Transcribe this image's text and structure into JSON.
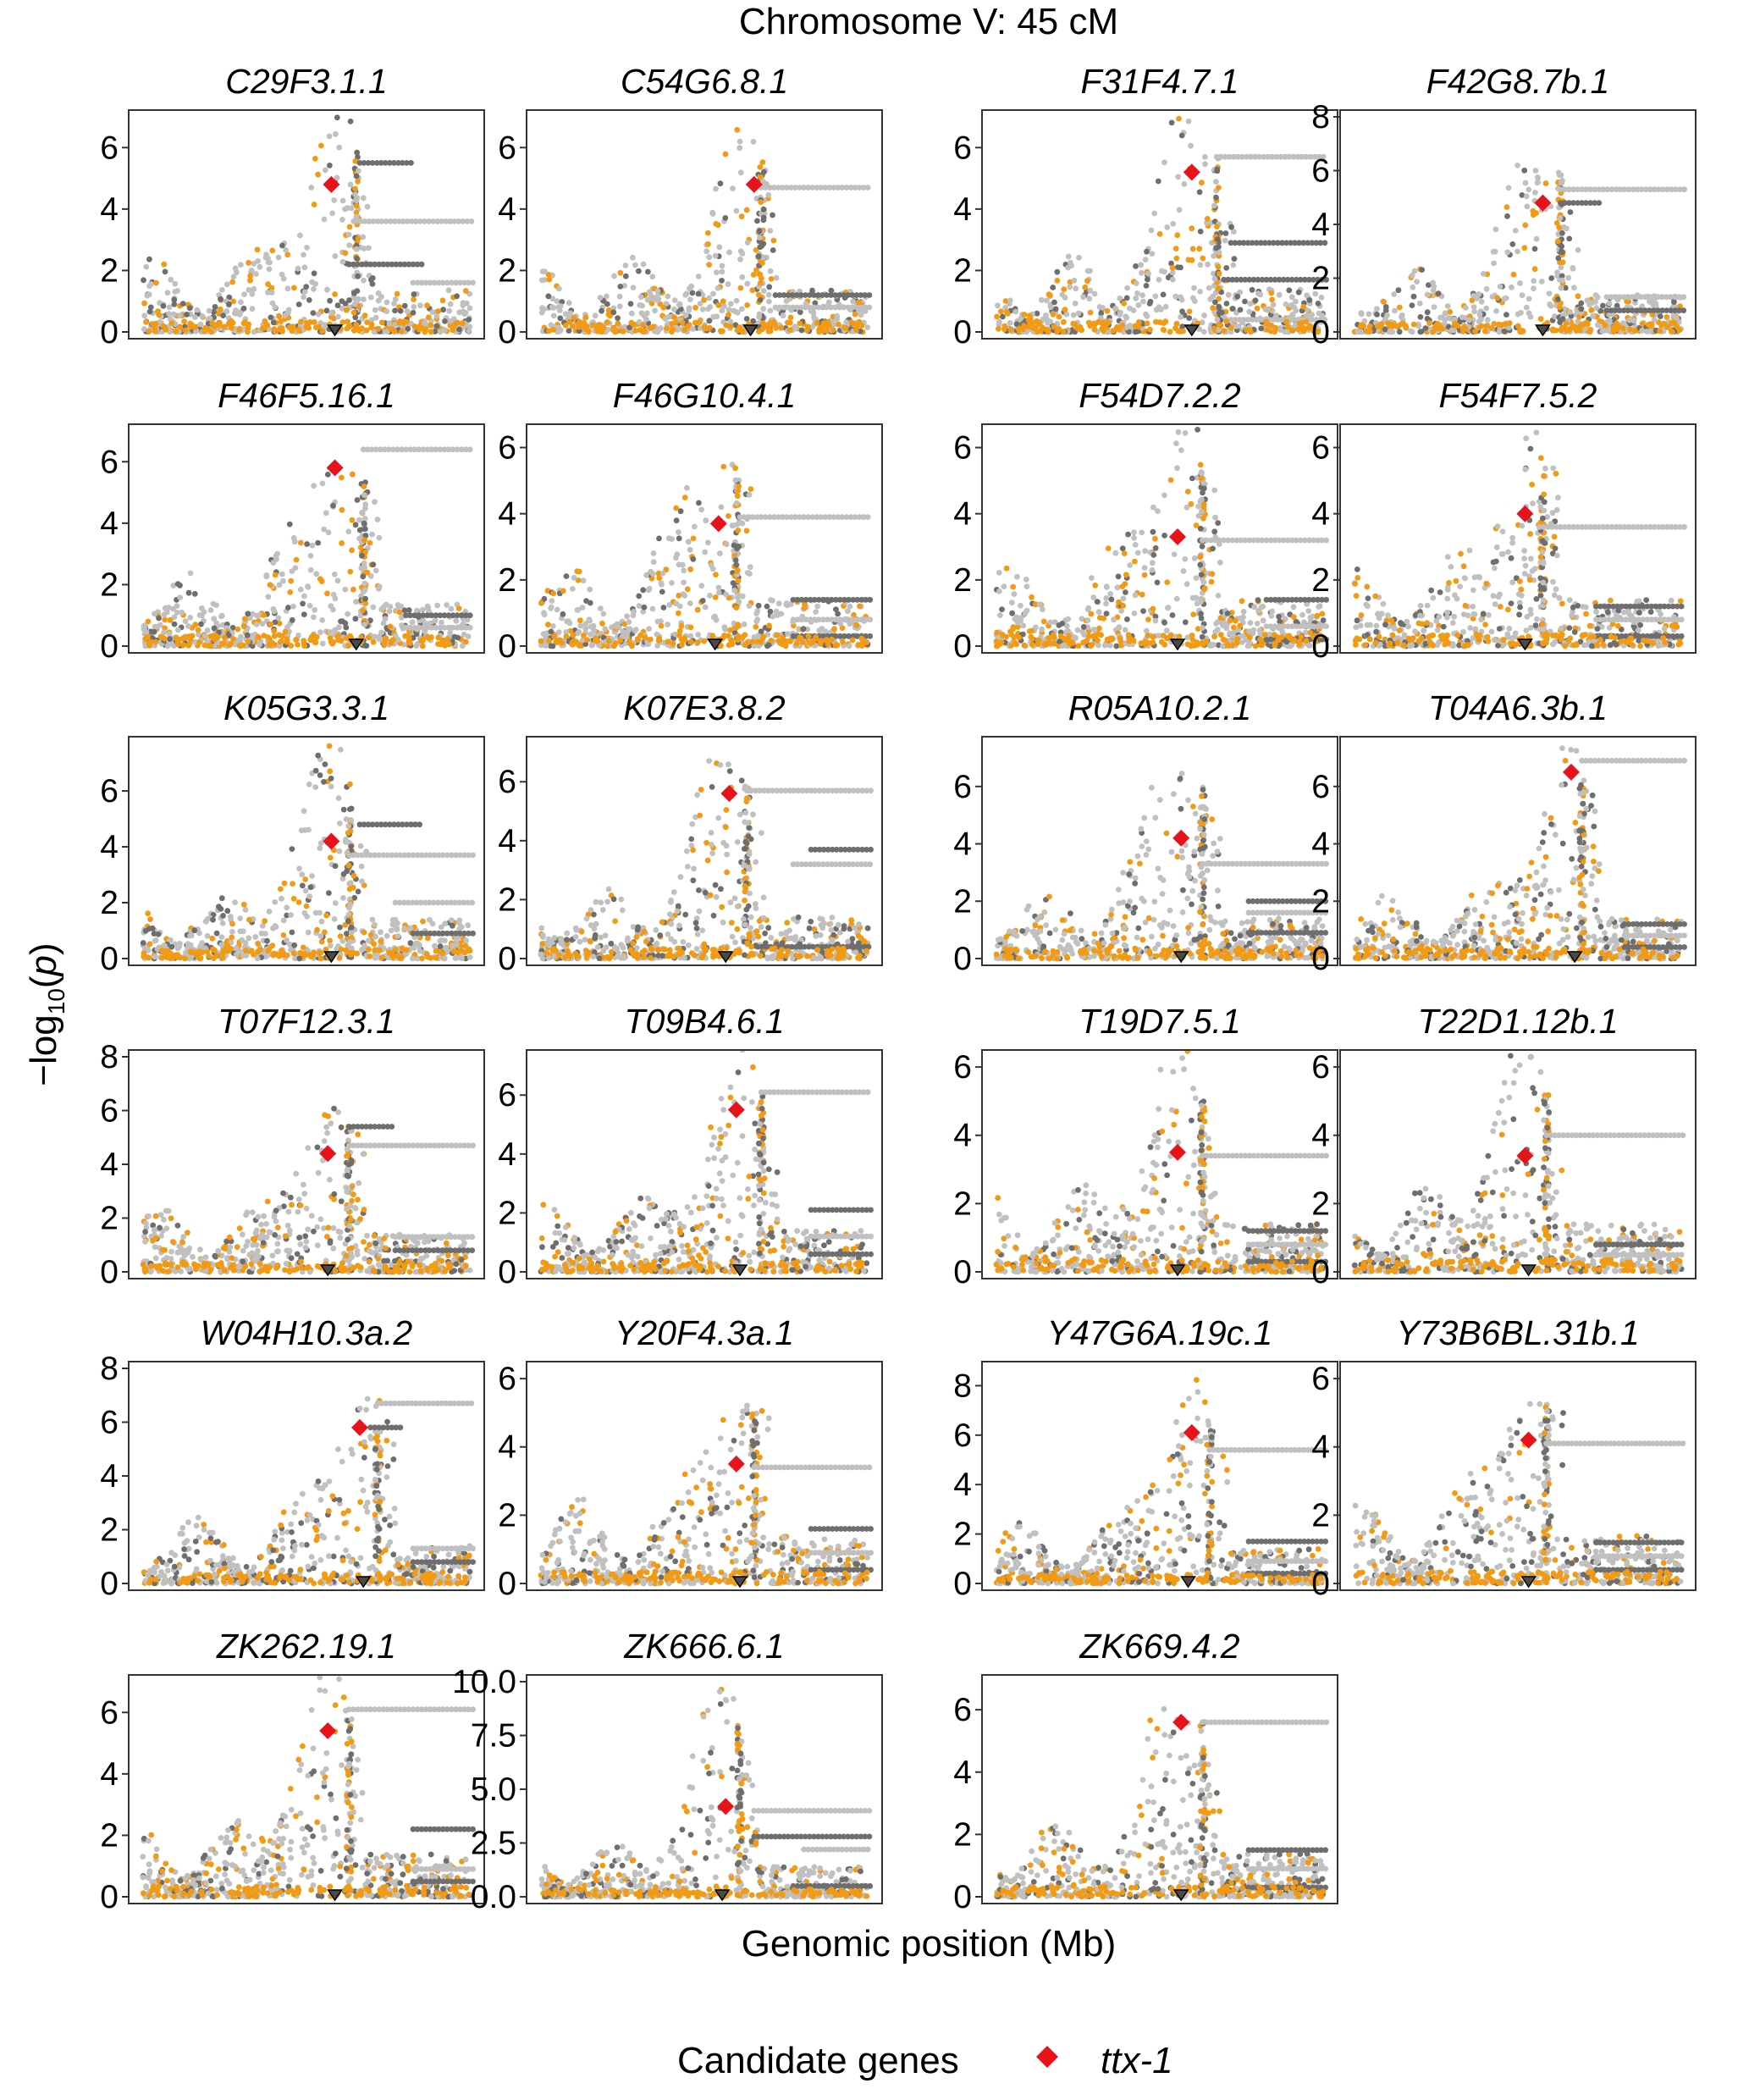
{
  "figure": {
    "title": "Chromosome V: 45 cM",
    "ylabel_prefix": "−log",
    "ylabel_sub": "10",
    "ylabel_open": "(",
    "ylabel_var": "p",
    "ylabel_close": ")",
    "xlabel": "Genomic position (Mb)",
    "legend_title": "Candidate genes",
    "legend_item": "ttx-1"
  },
  "colors": {
    "light_points": "#c0c0c0",
    "dark_points": "#6e6e6e",
    "orange_points": "#f39a13",
    "candidate": "#e8121b",
    "marker_fill": "#4a4a4a",
    "panel_border": "#333333"
  },
  "chart_data": {
    "type": "scatter",
    "title": "Chromosome V: 45 cM",
    "xlabel": "Genomic position (Mb)",
    "ylabel": "−log10(p)",
    "legend": {
      "title": "Candidate genes",
      "entries": [
        "ttx-1"
      ],
      "position": "bottom"
    },
    "grid": false,
    "panels": [
      {
        "gene": "C29F3.1.1",
        "ylim": [
          0,
          7
        ],
        "yticks": [
          "0",
          "2",
          "4",
          "6"
        ],
        "peak": 6.7,
        "candidate": {
          "x": 0.57,
          "y": 4.8
        },
        "marker_x": 0.58,
        "plateaus": [
          [
            0.64,
            1,
            3.6
          ],
          [
            0.65,
            0.83,
            5.5
          ],
          [
            0.8,
            1,
            1.6
          ],
          [
            0.62,
            0.86,
            2.2
          ]
        ],
        "spike_x": 0.64
      },
      {
        "gene": "C54G6.8.1",
        "ylim": [
          0,
          7
        ],
        "yticks": [
          "0",
          "2",
          "4",
          "6"
        ],
        "peak": 6.5,
        "candidate": {
          "x": 0.64,
          "y": 4.8
        },
        "marker_x": 0.63,
        "plateaus": [
          [
            0.66,
            1,
            4.7
          ],
          [
            0.7,
            1,
            1.2
          ],
          [
            0.7,
            1,
            0.8
          ]
        ],
        "spike_x": 0.66
      },
      {
        "gene": "F31F4.7.1",
        "ylim": [
          0,
          7
        ],
        "yticks": [
          "0",
          "2",
          "4",
          "6"
        ],
        "peak": 6.8,
        "candidate": {
          "x": 0.59,
          "y": 5.2
        },
        "marker_x": 0.59,
        "plateaus": [
          [
            0.66,
            1,
            5.7
          ],
          [
            0.7,
            1,
            2.9
          ],
          [
            0.7,
            1,
            0.4
          ],
          [
            0.68,
            1,
            1.7
          ]
        ],
        "spike_x": 0.66
      },
      {
        "gene": "F42G8.7b.1",
        "ylim": [
          0,
          8
        ],
        "yticks": [
          "0",
          "2",
          "4",
          "6",
          "8"
        ],
        "peak": 7.0,
        "candidate": {
          "x": 0.57,
          "y": 4.8
        },
        "marker_x": 0.57,
        "plateaus": [
          [
            0.62,
            1,
            5.3
          ],
          [
            0.62,
            0.76,
            4.8
          ],
          [
            0.75,
            1,
            1.3
          ],
          [
            0.75,
            1,
            0.8
          ]
        ],
        "spike_x": 0.62
      },
      {
        "gene": "F46F5.16.1",
        "ylim": [
          0,
          7
        ],
        "yticks": [
          "0",
          "2",
          "4",
          "6"
        ],
        "peak": 6.6,
        "candidate": {
          "x": 0.58,
          "y": 5.8
        },
        "marker_x": 0.64,
        "plateaus": [
          [
            0.66,
            1,
            6.4
          ],
          [
            0.78,
            1,
            1.0
          ],
          [
            0.78,
            1,
            0.6
          ]
        ],
        "spike_x": 0.66
      },
      {
        "gene": "F46G10.4.1",
        "ylim": [
          0,
          6.5
        ],
        "yticks": [
          "0",
          "2",
          "4",
          "6"
        ],
        "peak": 6.3,
        "candidate": {
          "x": 0.54,
          "y": 3.7
        },
        "marker_x": 0.53,
        "plateaus": [
          [
            0.6,
            1,
            3.9
          ],
          [
            0.75,
            1,
            1.4
          ],
          [
            0.75,
            1,
            0.8
          ],
          [
            0.75,
            1,
            0.3
          ]
        ],
        "spike_x": 0.59
      },
      {
        "gene": "F54D7.2.2",
        "ylim": [
          0,
          6.5
        ],
        "yticks": [
          "0",
          "2",
          "4",
          "6"
        ],
        "peak": 6.5,
        "candidate": {
          "x": 0.55,
          "y": 3.3
        },
        "marker_x": 0.55,
        "plateaus": [
          [
            0.62,
            1,
            3.2
          ],
          [
            0.8,
            1,
            1.4
          ],
          [
            0.8,
            1,
            0.6
          ],
          [
            0.8,
            1,
            0.2
          ]
        ],
        "spike_x": 0.62
      },
      {
        "gene": "F54F7.5.2",
        "ylim": [
          0,
          6.5
        ],
        "yticks": [
          "0",
          "2",
          "4",
          "6"
        ],
        "peak": 6.2,
        "candidate": {
          "x": 0.52,
          "y": 4.0
        },
        "marker_x": 0.52,
        "plateaus": [
          [
            0.56,
            1,
            3.6
          ],
          [
            0.72,
            1,
            1.2
          ],
          [
            0.72,
            1,
            0.8
          ],
          [
            0.72,
            1,
            0.3
          ]
        ],
        "spike_x": 0.57
      },
      {
        "gene": "K05G3.3.1",
        "ylim": [
          0,
          7.7
        ],
        "yticks": [
          "0",
          "2",
          "4",
          "6"
        ],
        "peak": 7.5,
        "candidate": {
          "x": 0.57,
          "y": 4.2
        },
        "marker_x": 0.57,
        "plateaus": [
          [
            0.62,
            1,
            3.7
          ],
          [
            0.65,
            0.85,
            4.8
          ],
          [
            0.75,
            1,
            2.0
          ],
          [
            0.8,
            1,
            0.9
          ]
        ],
        "spike_x": 0.62
      },
      {
        "gene": "K07E3.8.2",
        "ylim": [
          0,
          7.3
        ],
        "yticks": [
          "0",
          "2",
          "4",
          "6"
        ],
        "peak": 7.1,
        "candidate": {
          "x": 0.57,
          "y": 5.6
        },
        "marker_x": 0.56,
        "plateaus": [
          [
            0.62,
            1,
            5.7
          ],
          [
            0.8,
            1,
            3.7
          ],
          [
            0.75,
            1,
            3.2
          ],
          [
            0.65,
            1,
            0.4
          ]
        ],
        "spike_x": 0.62
      },
      {
        "gene": "R05A10.2.1",
        "ylim": [
          0,
          7.5
        ],
        "yticks": [
          "0",
          "2",
          "4",
          "6"
        ],
        "peak": 7.1,
        "candidate": {
          "x": 0.56,
          "y": 4.2
        },
        "marker_x": 0.56,
        "plateaus": [
          [
            0.62,
            1,
            3.3
          ],
          [
            0.75,
            1,
            2.0
          ],
          [
            0.75,
            1,
            1.6
          ],
          [
            0.75,
            1,
            0.9
          ]
        ],
        "spike_x": 0.62
      },
      {
        "gene": "T04A6.3b.1",
        "ylim": [
          0,
          7.5
        ],
        "yticks": [
          "0",
          "2",
          "4",
          "6"
        ],
        "peak": 7.4,
        "candidate": {
          "x": 0.65,
          "y": 6.5
        },
        "marker_x": 0.66,
        "plateaus": [
          [
            0.68,
            1,
            6.9
          ],
          [
            0.8,
            1,
            1.2
          ],
          [
            0.8,
            1,
            0.8
          ],
          [
            0.8,
            1,
            0.4
          ]
        ],
        "spike_x": 0.68
      },
      {
        "gene": "T07F12.3.1",
        "ylim": [
          0,
          8
        ],
        "yticks": [
          "0",
          "2",
          "4",
          "6",
          "8"
        ],
        "peak": 6.4,
        "candidate": {
          "x": 0.56,
          "y": 4.4
        },
        "marker_x": 0.56,
        "plateaus": [
          [
            0.62,
            1,
            4.7
          ],
          [
            0.62,
            0.78,
            5.4
          ],
          [
            0.75,
            1,
            1.3
          ],
          [
            0.75,
            1,
            0.8
          ]
        ],
        "spike_x": 0.62
      },
      {
        "gene": "T09B4.6.1",
        "ylim": [
          0,
          7.3
        ],
        "yticks": [
          "0",
          "2",
          "4",
          "6"
        ],
        "peak": 7.0,
        "candidate": {
          "x": 0.59,
          "y": 5.5
        },
        "marker_x": 0.6,
        "plateaus": [
          [
            0.66,
            1,
            6.1
          ],
          [
            0.8,
            1,
            2.1
          ],
          [
            0.8,
            1,
            1.2
          ],
          [
            0.8,
            1,
            0.6
          ]
        ],
        "spike_x": 0.66
      },
      {
        "gene": "T19D7.5.1",
        "ylim": [
          0,
          6.3
        ],
        "yticks": [
          "0",
          "2",
          "4",
          "6"
        ],
        "peak": 6.1,
        "candidate": {
          "x": 0.55,
          "y": 3.5
        },
        "marker_x": 0.55,
        "plateaus": [
          [
            0.62,
            1,
            3.4
          ],
          [
            0.75,
            1,
            1.2
          ],
          [
            0.75,
            1,
            0.8
          ],
          [
            0.75,
            1,
            0.3
          ]
        ],
        "spike_x": 0.62
      },
      {
        "gene": "T22D1.12b.1",
        "ylim": [
          0,
          6.3
        ],
        "yticks": [
          "0",
          "2",
          "4",
          "6"
        ],
        "peak": 6.1,
        "candidate": {
          "x": 0.52,
          "y": 3.4
        },
        "marker_x": 0.53,
        "plateaus": [
          [
            0.58,
            1,
            4.0
          ],
          [
            0.72,
            1,
            0.8
          ],
          [
            0.72,
            1,
            0.5
          ]
        ],
        "spike_x": 0.58
      },
      {
        "gene": "W04H10.3a.2",
        "ylim": [
          0,
          8
        ],
        "yticks": [
          "0",
          "2",
          "4",
          "6",
          "8"
        ],
        "peak": 7.0,
        "candidate": {
          "x": 0.65,
          "y": 5.8
        },
        "marker_x": 0.66,
        "plateaus": [
          [
            0.7,
            1,
            6.7
          ],
          [
            0.68,
            0.8,
            5.8
          ],
          [
            0.8,
            1,
            1.3
          ],
          [
            0.8,
            1,
            0.8
          ]
        ],
        "spike_x": 0.7
      },
      {
        "gene": "Y20F4.3a.1",
        "ylim": [
          0,
          6.3
        ],
        "yticks": [
          "0",
          "2",
          "4",
          "6"
        ],
        "peak": 6.1,
        "candidate": {
          "x": 0.59,
          "y": 3.5
        },
        "marker_x": 0.6,
        "plateaus": [
          [
            0.64,
            1,
            3.4
          ],
          [
            0.8,
            1,
            1.6
          ],
          [
            0.8,
            1,
            0.9
          ],
          [
            0.8,
            1,
            0.4
          ]
        ],
        "spike_x": 0.64
      },
      {
        "gene": "Y47G6A.19c.1",
        "ylim": [
          0,
          8.7
        ],
        "yticks": [
          "0",
          "2",
          "4",
          "6",
          "8"
        ],
        "peak": 7.8,
        "candidate": {
          "x": 0.59,
          "y": 6.1
        },
        "marker_x": 0.58,
        "plateaus": [
          [
            0.64,
            1,
            5.4
          ],
          [
            0.75,
            1,
            1.7
          ],
          [
            0.75,
            1,
            0.9
          ],
          [
            0.75,
            1,
            0.4
          ]
        ],
        "spike_x": 0.64
      },
      {
        "gene": "Y73B6BL.31b.1",
        "ylim": [
          0,
          6.3
        ],
        "yticks": [
          "0",
          "2",
          "4",
          "6"
        ],
        "peak": 6.1,
        "candidate": {
          "x": 0.53,
          "y": 4.2
        },
        "marker_x": 0.53,
        "plateaus": [
          [
            0.58,
            1,
            4.1
          ],
          [
            0.72,
            1,
            1.2
          ],
          [
            0.72,
            1,
            0.8
          ],
          [
            0.72,
            1,
            0.4
          ]
        ],
        "spike_x": 0.58
      },
      {
        "gene": "ZK262.19.1",
        "ylim": [
          0,
          7
        ],
        "yticks": [
          "0",
          "2",
          "4",
          "6"
        ],
        "peak": 6.8,
        "candidate": {
          "x": 0.56,
          "y": 5.4
        },
        "marker_x": 0.58,
        "plateaus": [
          [
            0.62,
            1,
            6.1
          ],
          [
            0.8,
            1,
            2.2
          ],
          [
            0.8,
            1,
            0.9
          ],
          [
            0.8,
            1,
            0.5
          ]
        ],
        "spike_x": 0.62
      },
      {
        "gene": "ZK666.6.1",
        "ylim": [
          0,
          10
        ],
        "yticks": [
          "0.0",
          "2.5",
          "5.0",
          "7.5",
          "10.0"
        ],
        "peak": 9.5,
        "candidate": {
          "x": 0.56,
          "y": 4.2
        },
        "marker_x": 0.55,
        "plateaus": [
          [
            0.64,
            1,
            4.0
          ],
          [
            0.64,
            1,
            2.8
          ],
          [
            0.78,
            1,
            2.2
          ],
          [
            0.75,
            1,
            0.5
          ]
        ],
        "spike_x": 0.6
      },
      {
        "gene": "ZK669.4.2",
        "ylim": [
          0,
          6.9
        ],
        "yticks": [
          "0",
          "2",
          "4",
          "6"
        ],
        "peak": 6.6,
        "candidate": {
          "x": 0.56,
          "y": 5.6
        },
        "marker_x": 0.56,
        "plateaus": [
          [
            0.62,
            1,
            5.6
          ],
          [
            0.75,
            1,
            1.5
          ],
          [
            0.75,
            1,
            0.9
          ],
          [
            0.75,
            1,
            0.3
          ]
        ],
        "spike_x": 0.62
      }
    ]
  }
}
